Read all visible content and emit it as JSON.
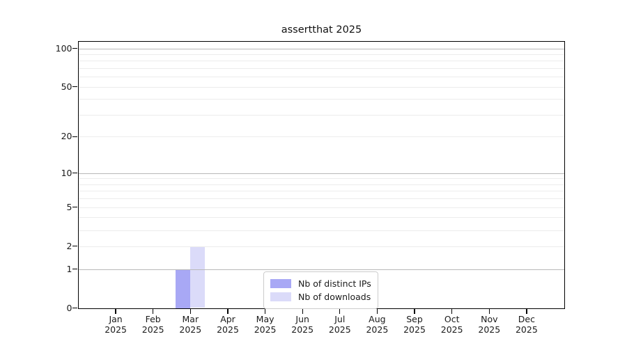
{
  "chart_data": {
    "type": "bar",
    "title": "assertthat 2025",
    "x": [
      {
        "month": "Jan",
        "year": "2025"
      },
      {
        "month": "Feb",
        "year": "2025"
      },
      {
        "month": "Mar",
        "year": "2025"
      },
      {
        "month": "Apr",
        "year": "2025"
      },
      {
        "month": "May",
        "year": "2025"
      },
      {
        "month": "Jun",
        "year": "2025"
      },
      {
        "month": "Jul",
        "year": "2025"
      },
      {
        "month": "Aug",
        "year": "2025"
      },
      {
        "month": "Sep",
        "year": "2025"
      },
      {
        "month": "Oct",
        "year": "2025"
      },
      {
        "month": "Nov",
        "year": "2025"
      },
      {
        "month": "Dec",
        "year": "2025"
      }
    ],
    "series": [
      {
        "name": "Nb of distinct IPs",
        "color": "#a8a8f5",
        "values": [
          0,
          0,
          1,
          0,
          0,
          0,
          0,
          0,
          0,
          0,
          0,
          0
        ]
      },
      {
        "name": "Nb of downloads",
        "color": "#dbdbf9",
        "values": [
          0,
          0,
          2,
          0,
          0,
          0,
          0,
          0,
          0,
          0,
          0,
          0
        ]
      }
    ],
    "y_axis": {
      "scale": "log1p",
      "tick_values": [
        0,
        1,
        2,
        5,
        10,
        20,
        50,
        100
      ],
      "major_gridlines": [
        1,
        10,
        100
      ],
      "minor_gridlines": [
        2,
        3,
        4,
        5,
        6,
        7,
        8,
        9,
        20,
        30,
        40,
        50,
        60,
        70,
        80,
        90
      ],
      "ylim": [
        0,
        113
      ]
    },
    "xlabel": "",
    "ylabel": "",
    "grid": true,
    "legend": {
      "position": "lower center"
    }
  },
  "colors": {
    "axis_spine": "#000000",
    "text": "#1a1a1a",
    "major_grid": "#b8b8b8",
    "minor_grid": "#ececec",
    "legend_border": "#cccccc",
    "background": "#ffffff"
  }
}
